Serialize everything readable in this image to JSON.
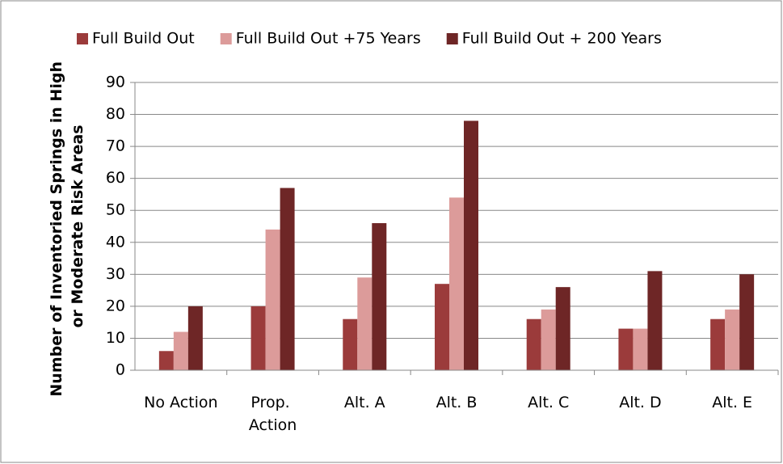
{
  "chart_data": {
    "type": "bar",
    "ylabel": "Number of Inventoried Springs in High or Moderate Risk Areas",
    "categories": [
      "No Action",
      "Prop. Action",
      "Alt. A",
      "Alt. B",
      "Alt. C",
      "Alt. D",
      "Alt. E"
    ],
    "series": [
      {
        "name": "Full Build Out",
        "color": "#9b3b3b",
        "values": [
          6,
          20,
          16,
          27,
          16,
          13,
          16
        ]
      },
      {
        "name": "Full Build Out +75 Years",
        "color": "#dc9b9a",
        "values": [
          12,
          44,
          29,
          54,
          19,
          13,
          19
        ]
      },
      {
        "name": "Full Build Out + 200 Years",
        "color": "#6e2626",
        "values": [
          20,
          57,
          46,
          78,
          26,
          31,
          30
        ]
      }
    ],
    "ylim": [
      0,
      90
    ],
    "yticks": [
      0,
      10,
      20,
      30,
      40,
      50,
      60,
      70,
      80,
      90
    ],
    "grid": true,
    "legend": "top"
  }
}
